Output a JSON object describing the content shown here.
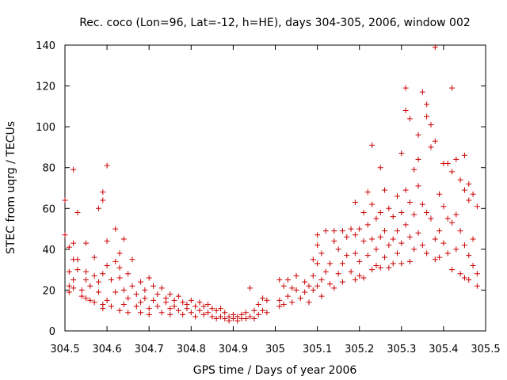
{
  "chart_data": {
    "type": "scatter",
    "title": "Rec. coco (Lon=96, Lat=-12, h=HE), days 304-305, 2006, window 002",
    "xlabel": "GPS time / Days of year 2006",
    "ylabel": "STEC from uqrg / TECUs",
    "xlim": [
      304.5,
      305.5
    ],
    "ylim": [
      0,
      140
    ],
    "x_ticks": [
      304.5,
      304.6,
      304.7,
      304.8,
      304.9,
      305,
      305.1,
      305.2,
      305.3,
      305.4,
      305.5
    ],
    "x_tick_labels": [
      "304.5",
      "304.6",
      "304.7",
      "304.8",
      "304.9",
      "305",
      "305.1",
      "305.2",
      "305.3",
      "305.4",
      "305.5"
    ],
    "y_ticks": [
      0,
      20,
      40,
      60,
      80,
      100,
      120,
      140
    ],
    "y_tick_labels": [
      "0",
      "20",
      "40",
      "60",
      "80",
      "100",
      "120",
      "140"
    ],
    "marker": "+",
    "color": "#cc0000",
    "series": [
      {
        "points": [
          [
            304.5,
            64
          ],
          [
            304.5,
            47
          ],
          [
            304.51,
            41
          ],
          [
            304.51,
            29
          ],
          [
            304.51,
            22
          ],
          [
            304.51,
            19
          ],
          [
            304.52,
            79
          ],
          [
            304.52,
            43
          ],
          [
            304.52,
            35
          ],
          [
            304.52,
            25
          ],
          [
            304.52,
            21
          ],
          [
            304.53,
            58
          ],
          [
            304.53,
            35
          ],
          [
            304.53,
            30
          ],
          [
            304.54,
            20
          ],
          [
            304.54,
            17
          ],
          [
            304.55,
            43
          ],
          [
            304.55,
            29
          ],
          [
            304.55,
            25
          ],
          [
            304.55,
            16
          ],
          [
            304.56,
            22
          ],
          [
            304.56,
            15
          ],
          [
            304.57,
            36
          ],
          [
            304.57,
            27
          ],
          [
            304.57,
            14
          ],
          [
            304.58,
            60
          ],
          [
            304.58,
            24
          ],
          [
            304.58,
            19
          ],
          [
            304.59,
            68
          ],
          [
            304.59,
            64
          ],
          [
            304.59,
            28
          ],
          [
            304.59,
            13
          ],
          [
            304.59,
            11
          ],
          [
            304.6,
            81
          ],
          [
            304.6,
            44
          ],
          [
            304.6,
            32
          ],
          [
            304.6,
            15
          ],
          [
            304.61,
            25
          ],
          [
            304.61,
            12
          ],
          [
            304.62,
            50
          ],
          [
            304.62,
            34
          ],
          [
            304.62,
            19
          ],
          [
            304.63,
            38
          ],
          [
            304.63,
            31
          ],
          [
            304.63,
            26
          ],
          [
            304.63,
            10
          ],
          [
            304.64,
            45
          ],
          [
            304.64,
            20
          ],
          [
            304.64,
            13
          ],
          [
            304.65,
            28
          ],
          [
            304.65,
            16
          ],
          [
            304.65,
            9
          ],
          [
            304.66,
            35
          ],
          [
            304.66,
            22
          ],
          [
            304.67,
            18
          ],
          [
            304.67,
            12
          ],
          [
            304.68,
            24
          ],
          [
            304.68,
            14
          ],
          [
            304.68,
            9
          ],
          [
            304.69,
            20
          ],
          [
            304.69,
            16
          ],
          [
            304.7,
            26
          ],
          [
            304.7,
            11
          ],
          [
            304.7,
            8
          ],
          [
            304.71,
            22
          ],
          [
            304.71,
            15
          ],
          [
            304.72,
            18
          ],
          [
            304.72,
            12
          ],
          [
            304.73,
            21
          ],
          [
            304.73,
            9
          ],
          [
            304.74,
            16
          ],
          [
            304.74,
            14
          ],
          [
            304.75,
            18
          ],
          [
            304.75,
            11
          ],
          [
            304.75,
            8
          ],
          [
            304.76,
            15
          ],
          [
            304.76,
            12
          ],
          [
            304.77,
            17
          ],
          [
            304.77,
            10
          ],
          [
            304.78,
            14
          ],
          [
            304.78,
            8
          ],
          [
            304.79,
            13
          ],
          [
            304.79,
            11
          ],
          [
            304.8,
            15
          ],
          [
            304.8,
            9
          ],
          [
            304.81,
            12
          ],
          [
            304.81,
            7
          ],
          [
            304.82,
            14
          ],
          [
            304.82,
            10
          ],
          [
            304.83,
            12
          ],
          [
            304.83,
            8
          ],
          [
            304.84,
            13
          ],
          [
            304.84,
            9
          ],
          [
            304.85,
            11
          ],
          [
            304.85,
            7
          ],
          [
            304.86,
            10
          ],
          [
            304.86,
            6
          ],
          [
            304.87,
            11
          ],
          [
            304.87,
            7
          ],
          [
            304.88,
            9
          ],
          [
            304.88,
            6
          ],
          [
            304.89,
            7
          ],
          [
            304.89,
            5
          ],
          [
            304.9,
            8
          ],
          [
            304.9,
            6
          ],
          [
            304.91,
            7
          ],
          [
            304.91,
            5
          ],
          [
            304.92,
            8
          ],
          [
            304.92,
            6
          ],
          [
            304.93,
            9
          ],
          [
            304.93,
            6
          ],
          [
            304.94,
            21
          ],
          [
            304.94,
            7
          ],
          [
            304.95,
            10
          ],
          [
            304.95,
            6
          ],
          [
            304.96,
            13
          ],
          [
            304.96,
            8
          ],
          [
            304.97,
            16
          ],
          [
            304.97,
            10
          ],
          [
            304.98,
            15
          ],
          [
            304.98,
            9
          ],
          [
            305.01,
            25
          ],
          [
            305.01,
            15
          ],
          [
            305.01,
            12
          ],
          [
            305.02,
            22
          ],
          [
            305.02,
            13
          ],
          [
            305.03,
            25
          ],
          [
            305.03,
            17
          ],
          [
            305.04,
            21
          ],
          [
            305.04,
            14
          ],
          [
            305.05,
            27
          ],
          [
            305.05,
            20
          ],
          [
            305.06,
            16
          ],
          [
            305.07,
            24
          ],
          [
            305.07,
            19
          ],
          [
            305.08,
            22
          ],
          [
            305.08,
            14
          ],
          [
            305.09,
            35
          ],
          [
            305.09,
            27
          ],
          [
            305.09,
            20
          ],
          [
            305.1,
            47
          ],
          [
            305.1,
            42
          ],
          [
            305.1,
            33
          ],
          [
            305.1,
            22
          ],
          [
            305.11,
            38
          ],
          [
            305.11,
            25
          ],
          [
            305.11,
            17
          ],
          [
            305.12,
            49
          ],
          [
            305.12,
            29
          ],
          [
            305.13,
            33
          ],
          [
            305.13,
            23
          ],
          [
            305.14,
            49
          ],
          [
            305.14,
            44
          ],
          [
            305.14,
            21
          ],
          [
            305.15,
            40
          ],
          [
            305.15,
            28
          ],
          [
            305.16,
            49
          ],
          [
            305.16,
            33
          ],
          [
            305.16,
            24
          ],
          [
            305.17,
            46
          ],
          [
            305.17,
            37
          ],
          [
            305.18,
            50
          ],
          [
            305.18,
            29
          ],
          [
            305.19,
            63
          ],
          [
            305.19,
            47
          ],
          [
            305.19,
            38
          ],
          [
            305.19,
            25
          ],
          [
            305.2,
            50
          ],
          [
            305.2,
            34
          ],
          [
            305.2,
            27
          ],
          [
            305.21,
            58
          ],
          [
            305.21,
            44
          ],
          [
            305.21,
            26
          ],
          [
            305.22,
            68
          ],
          [
            305.22,
            52
          ],
          [
            305.22,
            37
          ],
          [
            305.23,
            91
          ],
          [
            305.23,
            62
          ],
          [
            305.23,
            45
          ],
          [
            305.23,
            30
          ],
          [
            305.24,
            55
          ],
          [
            305.24,
            40
          ],
          [
            305.24,
            32
          ],
          [
            305.25,
            80
          ],
          [
            305.25,
            58
          ],
          [
            305.25,
            46
          ],
          [
            305.25,
            31
          ],
          [
            305.26,
            69
          ],
          [
            305.26,
            49
          ],
          [
            305.26,
            36
          ],
          [
            305.27,
            60
          ],
          [
            305.27,
            42
          ],
          [
            305.27,
            31
          ],
          [
            305.28,
            56
          ],
          [
            305.28,
            45
          ],
          [
            305.28,
            33
          ],
          [
            305.29,
            66
          ],
          [
            305.29,
            49
          ],
          [
            305.29,
            38
          ],
          [
            305.3,
            87
          ],
          [
            305.3,
            58
          ],
          [
            305.3,
            43
          ],
          [
            305.3,
            33
          ],
          [
            305.31,
            119
          ],
          [
            305.31,
            108
          ],
          [
            305.31,
            69
          ],
          [
            305.31,
            52
          ],
          [
            305.32,
            104
          ],
          [
            305.32,
            63
          ],
          [
            305.32,
            46
          ],
          [
            305.32,
            34
          ],
          [
            305.33,
            79
          ],
          [
            305.33,
            57
          ],
          [
            305.33,
            40
          ],
          [
            305.34,
            96
          ],
          [
            305.34,
            84
          ],
          [
            305.34,
            71
          ],
          [
            305.34,
            48
          ],
          [
            305.35,
            117
          ],
          [
            305.35,
            62
          ],
          [
            305.35,
            42
          ],
          [
            305.36,
            111
          ],
          [
            305.36,
            105
          ],
          [
            305.36,
            58
          ],
          [
            305.36,
            38
          ],
          [
            305.37,
            101
          ],
          [
            305.37,
            90
          ],
          [
            305.37,
            55
          ],
          [
            305.38,
            139
          ],
          [
            305.38,
            93
          ],
          [
            305.38,
            45
          ],
          [
            305.38,
            35
          ],
          [
            305.39,
            67
          ],
          [
            305.39,
            49
          ],
          [
            305.39,
            36
          ],
          [
            305.4,
            82
          ],
          [
            305.4,
            61
          ],
          [
            305.4,
            43
          ],
          [
            305.41,
            82
          ],
          [
            305.41,
            55
          ],
          [
            305.41,
            38
          ],
          [
            305.42,
            119
          ],
          [
            305.42,
            78
          ],
          [
            305.42,
            53
          ],
          [
            305.42,
            30
          ],
          [
            305.43,
            84
          ],
          [
            305.43,
            57
          ],
          [
            305.43,
            40
          ],
          [
            305.44,
            74
          ],
          [
            305.44,
            49
          ],
          [
            305.44,
            28
          ],
          [
            305.45,
            86
          ],
          [
            305.45,
            69
          ],
          [
            305.45,
            42
          ],
          [
            305.45,
            26
          ],
          [
            305.46,
            72
          ],
          [
            305.46,
            64
          ],
          [
            305.46,
            37
          ],
          [
            305.46,
            25
          ],
          [
            305.47,
            67
          ],
          [
            305.47,
            45
          ],
          [
            305.47,
            32
          ],
          [
            305.48,
            61
          ],
          [
            305.48,
            28
          ],
          [
            305.48,
            22
          ]
        ]
      }
    ]
  }
}
